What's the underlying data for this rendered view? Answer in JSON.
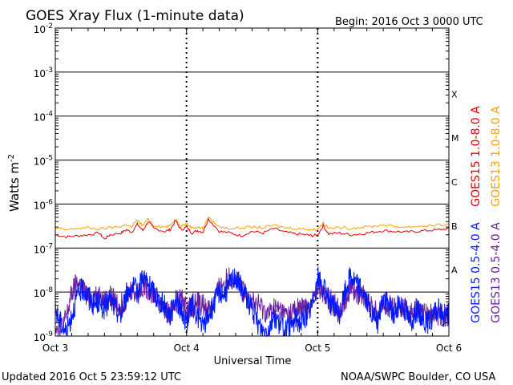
{
  "header": {
    "title": "GOES Xray Flux (1-minute data)",
    "begin": "Begin:  2016 Oct 3 0000 UTC"
  },
  "footer": {
    "updated": "Updated 2016 Oct  5 23:59:12 UTC",
    "credit": "NOAA/SWPC Boulder, CO USA"
  },
  "chart_data": {
    "type": "line",
    "title": "GOES Xray Flux (1-minute data)",
    "ylabel_base": "Watts m",
    "ylabel_exp": "-2",
    "xlabel": "Universal Time",
    "y_scale": "log",
    "ylim": [
      1e-09,
      0.01
    ],
    "xlim": [
      "2016-10-03T00:00Z",
      "2016-10-06T00:00Z"
    ],
    "x_ticks": [
      {
        "label": "Oct 3",
        "t": "2016-10-03T00:00Z"
      },
      {
        "label": "Oct 4",
        "t": "2016-10-04T00:00Z"
      },
      {
        "label": "Oct 5",
        "t": "2016-10-05T00:00Z"
      },
      {
        "label": "Oct 6",
        "t": "2016-10-06T00:00Z"
      }
    ],
    "y_ticks": [
      {
        "base": "10",
        "exp": "-2",
        "value": 0.01
      },
      {
        "base": "10",
        "exp": "-3",
        "value": 0.001
      },
      {
        "base": "10",
        "exp": "-4",
        "value": 0.0001
      },
      {
        "base": "10",
        "exp": "-5",
        "value": 1e-05
      },
      {
        "base": "10",
        "exp": "-6",
        "value": 1e-06
      },
      {
        "base": "10",
        "exp": "-7",
        "value": 1e-07
      },
      {
        "base": "10",
        "exp": "-8",
        "value": 1e-08
      },
      {
        "base": "10",
        "exp": "-9",
        "value": 1e-09
      }
    ],
    "flare_classes": [
      {
        "label": "X",
        "value": 0.000316
      },
      {
        "label": "M",
        "value": 3.16e-05
      },
      {
        "label": "C",
        "value": 3.16e-06
      },
      {
        "label": "B",
        "value": 3.16e-07
      },
      {
        "label": "A",
        "value": 3.16e-08
      }
    ],
    "grid": true,
    "legend_placement": "right",
    "series": [
      {
        "name": "GOES15 1.0-8.0 A",
        "color": "#e00000",
        "hours": [
          0,
          2,
          4,
          6,
          8,
          9,
          10,
          12,
          13,
          14,
          15,
          16,
          17,
          18,
          20,
          21,
          22,
          23,
          24,
          25,
          26,
          27,
          28,
          30,
          32,
          34,
          36,
          38,
          40,
          42,
          44,
          46,
          47,
          48,
          49,
          50,
          52,
          54,
          56,
          58,
          60,
          62,
          64,
          66,
          68,
          70,
          72
        ],
        "values": [
          2e-07,
          1.8e-07,
          1.9e-07,
          2e-07,
          2.2e-07,
          1.6e-07,
          2e-07,
          2.2e-07,
          2.6e-07,
          2.3e-07,
          3.5e-07,
          2.5e-07,
          4e-07,
          2.8e-07,
          2.4e-07,
          2.6e-07,
          4.2e-07,
          2.6e-07,
          3e-07,
          2.2e-07,
          2.5e-07,
          2.3e-07,
          4.6e-07,
          2.4e-07,
          2.2e-07,
          1.9e-07,
          2.4e-07,
          2.2e-07,
          2.8e-07,
          2.3e-07,
          2.1e-07,
          2e-07,
          1.9e-07,
          2e-07,
          3.2e-07,
          2.1e-07,
          2.2e-07,
          2e-07,
          2.1e-07,
          2.3e-07,
          2.5e-07,
          2.4e-07,
          2.3e-07,
          2.4e-07,
          2.5e-07,
          2.6e-07,
          2.8e-07
        ]
      },
      {
        "name": "GOES13 1.0-8.0 A",
        "color": "#ffa000",
        "hours": [
          0,
          2,
          4,
          6,
          8,
          10,
          12,
          13,
          14,
          15,
          16,
          17,
          18,
          20,
          21,
          22,
          23,
          24,
          25,
          26,
          27,
          28,
          30,
          32,
          34,
          36,
          38,
          40,
          42,
          44,
          46,
          47,
          48,
          49,
          50,
          52,
          54,
          56,
          58,
          60,
          62,
          64,
          66,
          68,
          70,
          72
        ],
        "values": [
          2.8e-07,
          2.6e-07,
          2.8e-07,
          2.9e-07,
          2.7e-07,
          2.9e-07,
          3.1e-07,
          3.4e-07,
          3e-07,
          4.4e-07,
          3.2e-07,
          4.6e-07,
          3.3e-07,
          3e-07,
          3.2e-07,
          4.6e-07,
          3.2e-07,
          3.6e-07,
          2.9e-07,
          3e-07,
          2.8e-07,
          5e-07,
          3e-07,
          2.8e-07,
          2.9e-07,
          3e-07,
          2.9e-07,
          3.3e-07,
          2.9e-07,
          2.8e-07,
          2.7e-07,
          2.6e-07,
          2.7e-07,
          3.8e-07,
          2.8e-07,
          2.9e-07,
          2.8e-07,
          3e-07,
          3.1e-07,
          3.4e-07,
          3.1e-07,
          3e-07,
          3.1e-07,
          3.2e-07,
          3.3e-07,
          3.4e-07
        ]
      },
      {
        "name": "GOES15 0.5-4.0 A",
        "color": "#0018ff",
        "hours": [
          0,
          1,
          2,
          3,
          4,
          5,
          6,
          7,
          8,
          9,
          10,
          11,
          12,
          13,
          14,
          15,
          16,
          17,
          18,
          19,
          20,
          21,
          22,
          23,
          24,
          25,
          26,
          27,
          28,
          29,
          30,
          31,
          32,
          33,
          34,
          35,
          36,
          37,
          38,
          39,
          40,
          41,
          42,
          43,
          44,
          45,
          46,
          47,
          48,
          49,
          50,
          51,
          52,
          53,
          54,
          55,
          56,
          57,
          58,
          59,
          60,
          61,
          62,
          63,
          64,
          65,
          66,
          67,
          68,
          69,
          70,
          71,
          72
        ],
        "values": [
          4e-09,
          2e-09,
          1.2e-09,
          3e-09,
          8e-09,
          1.2e-08,
          9e-09,
          5e-09,
          6e-09,
          4e-09,
          7e-09,
          4e-09,
          3e-09,
          9e-09,
          1.3e-08,
          1e-08,
          2.5e-08,
          1.4e-08,
          1e-08,
          6e-09,
          5e-09,
          3e-09,
          8e-09,
          4e-09,
          2e-09,
          5e-09,
          3e-09,
          1.5e-09,
          3e-09,
          5e-09,
          1.1e-08,
          9e-09,
          1.6e-08,
          2.4e-08,
          1.2e-08,
          8e-09,
          4e-09,
          2e-09,
          1.3e-09,
          1.5e-09,
          3e-09,
          2e-09,
          1.2e-09,
          1.5e-09,
          2.5e-09,
          2e-09,
          3e-09,
          5e-09,
          2.2e-08,
          1.2e-08,
          7e-09,
          4e-09,
          3e-09,
          1e-08,
          2.4e-08,
          1.6e-08,
          1.2e-08,
          6e-09,
          3e-09,
          2e-09,
          8e-09,
          5e-09,
          3e-09,
          6e-09,
          4e-09,
          2e-09,
          4e-09,
          3e-09,
          2e-09,
          2.5e-09,
          4e-09,
          3e-09,
          3e-09
        ]
      },
      {
        "name": "GOES13 0.5-4.0 A",
        "color": "#6a1fa0",
        "hours": [
          0,
          1,
          2,
          3,
          4,
          5,
          6,
          7,
          8,
          9,
          10,
          11,
          12,
          13,
          14,
          15,
          16,
          17,
          18,
          19,
          20,
          21,
          22,
          23,
          24,
          25,
          26,
          27,
          28,
          29,
          30,
          31,
          32,
          33,
          34,
          35,
          36,
          37,
          38,
          39,
          40,
          41,
          42,
          43,
          44,
          45,
          46,
          47,
          48,
          49,
          50,
          51,
          52,
          53,
          54,
          55,
          56,
          57,
          58,
          59,
          60,
          61,
          62,
          63,
          64,
          65,
          66,
          67,
          68,
          69,
          70,
          71,
          72
        ],
        "values": [
          2e-09,
          1.5e-09,
          2.5e-09,
          9e-09,
          1.6e-08,
          1.2e-08,
          7e-09,
          8e-09,
          9e-09,
          6e-09,
          8e-09,
          6e-09,
          5e-09,
          8e-09,
          1.2e-08,
          9e-09,
          1.4e-08,
          1.2e-08,
          9e-09,
          6e-09,
          4e-09,
          3e-09,
          6e-09,
          7e-09,
          4e-09,
          5e-09,
          6e-09,
          5e-09,
          4e-09,
          6e-09,
          1.2e-08,
          1.8e-08,
          2.2e-08,
          1.8e-08,
          1.1e-08,
          8e-09,
          6e-09,
          5e-09,
          4e-09,
          3e-09,
          4e-09,
          4e-09,
          3e-09,
          3e-09,
          4e-09,
          4e-09,
          4e-09,
          5e-09,
          1.4e-08,
          1e-08,
          7e-09,
          5e-09,
          4e-09,
          7e-09,
          1.2e-08,
          1e-08,
          9e-09,
          6e-09,
          4e-09,
          3e-09,
          6e-09,
          5e-09,
          4e-09,
          5e-09,
          4e-09,
          3e-09,
          4e-09,
          3e-09,
          3e-09,
          3e-09,
          3e-09,
          3e-09,
          3e-09
        ]
      }
    ]
  }
}
